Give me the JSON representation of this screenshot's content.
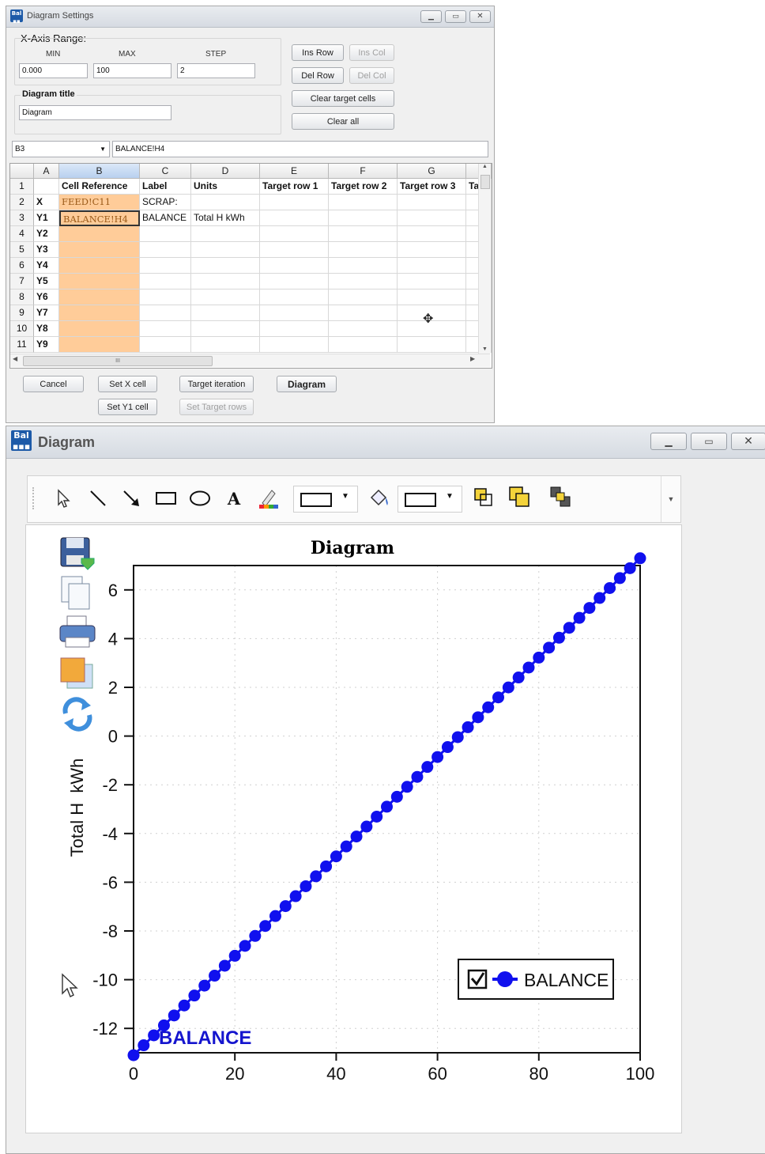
{
  "settings": {
    "title": "Diagram Settings",
    "xaxis": {
      "label": "X-Axis Range:",
      "min_label": "MIN",
      "max_label": "MAX",
      "step_label": "STEP",
      "min": "0.000",
      "max": "100",
      "step": "2"
    },
    "diagram_title_label": "Diagram title",
    "diagram_title_value": "Diagram",
    "buttons": {
      "ins_row": "Ins Row",
      "ins_col": "Ins Col",
      "del_row": "Del Row",
      "del_col": "Del Col",
      "clear_target": "Clear target cells",
      "clear_all": "Clear all"
    },
    "cell_ref": "B3",
    "formula": "BALANCE!H4",
    "columns": [
      "A",
      "B",
      "C",
      "D",
      "E",
      "F",
      "G"
    ],
    "rows": [
      {
        "n": "1",
        "a": "",
        "b": "Cell Reference",
        "c": "Label",
        "d": "Units",
        "e": "Target row 1",
        "f": "Target row 2",
        "g": "Target row 3",
        "h": "Ta"
      },
      {
        "n": "2",
        "a": "X",
        "b": "FEED!C11",
        "c": "SCRAP:",
        "d": "",
        "e": "",
        "f": "",
        "g": "",
        "h": ""
      },
      {
        "n": "3",
        "a": "Y1",
        "b": "BALANCE!H4",
        "c": "BALANCE",
        "d": "Total H  kWh",
        "e": "",
        "f": "",
        "g": "",
        "h": ""
      },
      {
        "n": "4",
        "a": "Y2",
        "b": "",
        "c": "",
        "d": "",
        "e": "",
        "f": "",
        "g": "",
        "h": ""
      },
      {
        "n": "5",
        "a": "Y3",
        "b": "",
        "c": "",
        "d": "",
        "e": "",
        "f": "",
        "g": "",
        "h": ""
      },
      {
        "n": "6",
        "a": "Y4",
        "b": "",
        "c": "",
        "d": "",
        "e": "",
        "f": "",
        "g": "",
        "h": ""
      },
      {
        "n": "7",
        "a": "Y5",
        "b": "",
        "c": "",
        "d": "",
        "e": "",
        "f": "",
        "g": "",
        "h": ""
      },
      {
        "n": "8",
        "a": "Y6",
        "b": "",
        "c": "",
        "d": "",
        "e": "",
        "f": "",
        "g": "",
        "h": ""
      },
      {
        "n": "9",
        "a": "Y7",
        "b": "",
        "c": "",
        "d": "",
        "e": "",
        "f": "",
        "g": "",
        "h": ""
      },
      {
        "n": "10",
        "a": "Y8",
        "b": "",
        "c": "",
        "d": "",
        "e": "",
        "f": "",
        "g": "",
        "h": ""
      },
      {
        "n": "11",
        "a": "Y9",
        "b": "",
        "c": "",
        "d": "",
        "e": "",
        "f": "",
        "g": "",
        "h": ""
      }
    ],
    "scroll_glyph": "III",
    "bottom": {
      "cancel": "Cancel",
      "set_x": "Set X cell",
      "target_iteration": "Target iteration",
      "diagram": "Diagram",
      "set_y1": "Set Y1 cell",
      "set_target_rows": "Set Target rows"
    }
  },
  "diagram": {
    "title": "Diagram",
    "toolbar_icons": [
      "pointer-icon",
      "line-icon",
      "arrow-icon",
      "rectangle-icon",
      "ellipse-icon",
      "text-icon",
      "pen-color-icon",
      "line-style-dropdown",
      "fill-bucket-icon",
      "fill-style-dropdown",
      "bring-forward-icon",
      "send-backward-icon",
      "group-icon"
    ],
    "side_icons": [
      "save-icon",
      "copy-icon",
      "print-icon",
      "export-icon",
      "refresh-icon"
    ],
    "colors": {
      "series": "#1010ee",
      "app_icon": "#1d5aa8"
    }
  },
  "chart_data": {
    "type": "line",
    "title": "Diagram",
    "ylabel": "Total H  kWh",
    "xlabel": "",
    "xlim": [
      0,
      100
    ],
    "ylim": [
      -13,
      7
    ],
    "xticks": [
      0,
      20,
      40,
      60,
      80,
      100
    ],
    "yticks": [
      -12,
      -10,
      -8,
      -6,
      -4,
      -2,
      0,
      2,
      4,
      6
    ],
    "grid": true,
    "legend": "bottom-right",
    "series": [
      {
        "name": "BALANCE",
        "color": "#1010ee",
        "marker": "circle",
        "x_start": 0,
        "x_step": 2,
        "x_end": 100,
        "y_start": -13.1,
        "y_end": 7.3
      }
    ],
    "annotations": [
      "BALANCE"
    ]
  }
}
